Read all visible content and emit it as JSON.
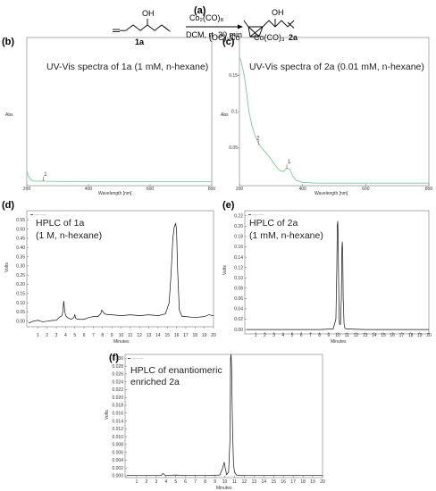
{
  "scheme": {
    "label": "(a)",
    "reagent": "Co₂(CO)₈",
    "conditions": "DCM, rt ,30 min",
    "substituent_oh": "OH",
    "start_compound": "1a",
    "product_compound": "2a",
    "cobalt_left": "(OC)₃Co",
    "cobalt_right": "Co(CO)₃"
  },
  "colors": {
    "uv_line": "#7ec8a2",
    "uv_line_dark": "#2e7d4f",
    "hplc_line": "#111111",
    "frame": "#555555"
  },
  "chart_data": [
    {
      "id": "b",
      "panel_label": "(b)",
      "type": "line",
      "title_text": "UV-Vis spectra of 1a (1 mM, n-hexane)",
      "xlabel": "Wavelength [nm]",
      "ylabel": "Abs",
      "xlim": [
        200,
        800
      ],
      "ylim": [
        0,
        0.16
      ],
      "xticks": [
        200,
        400,
        600,
        800
      ],
      "x_tick_labels": [
        "200",
        "400",
        "600",
        "800"
      ],
      "yticks": [],
      "y_tick_labels": [],
      "peak_marks": [
        {
          "label": "1",
          "x": 253,
          "y": 0.004
        }
      ],
      "series": [
        {
          "x": [
            200,
            204,
            208,
            212,
            216,
            220,
            225,
            230,
            240,
            250,
            260,
            280,
            300,
            350,
            400,
            500,
            600,
            700,
            800
          ],
          "y": [
            0.014,
            0.01,
            0.007,
            0.005,
            0.004,
            0.0035,
            0.003,
            0.003,
            0.003,
            0.0032,
            0.003,
            0.0028,
            0.0027,
            0.0026,
            0.0025,
            0.0025,
            0.0025,
            0.0025,
            0.0025
          ]
        }
      ]
    },
    {
      "id": "c",
      "panel_label": "(c)",
      "type": "line",
      "title_text": "UV-Vis spectra of 2a (0.01 mM, n-hexane)",
      "xlabel": "Wavelength [nm]",
      "ylabel": "Abs",
      "xlim": [
        200,
        800
      ],
      "ylim": [
        0,
        0.2
      ],
      "xticks": [
        200,
        400,
        600,
        800
      ],
      "x_tick_labels": [
        "200",
        "400",
        "600",
        "800"
      ],
      "yticks": [
        0.05,
        0.1,
        0.15
      ],
      "y_tick_labels": [
        "0.05",
        "0.1",
        "0.15"
      ],
      "peak_marks": [
        {
          "label": "1",
          "x": 350,
          "y": 0.022
        },
        {
          "label": "2",
          "x": 260,
          "y": 0.055
        }
      ],
      "series": [
        {
          "x": [
            200,
            205,
            210,
            215,
            220,
            225,
            230,
            240,
            250,
            260,
            270,
            280,
            290,
            300,
            310,
            320,
            330,
            340,
            350,
            360,
            370,
            380,
            400,
            450,
            500,
            600,
            700,
            800
          ],
          "y": [
            0.175,
            0.17,
            0.16,
            0.15,
            0.135,
            0.118,
            0.1,
            0.08,
            0.066,
            0.057,
            0.05,
            0.045,
            0.04,
            0.034,
            0.028,
            0.022,
            0.018,
            0.017,
            0.022,
            0.02,
            0.01,
            0.005,
            0.002,
            0.001,
            0.001,
            0.001,
            0.001,
            0.001
          ]
        }
      ]
    },
    {
      "id": "d",
      "panel_label": "(d)",
      "type": "line",
      "title_text": "HPLC of 1a",
      "subtitle_text": "(1 M, n-hexane)",
      "xlabel": "Minutes",
      "ylabel": "Volts",
      "xlim": [
        0,
        20
      ],
      "ylim": [
        -0.03,
        0.6
      ],
      "xticks": [
        1,
        2,
        3,
        4,
        5,
        6,
        7,
        8,
        9,
        10,
        11,
        12,
        13,
        14,
        15,
        16,
        17,
        18,
        19,
        20
      ],
      "yticks": [
        0.0,
        0.05,
        0.1,
        0.15,
        0.2,
        0.25,
        0.3,
        0.35,
        0.4,
        0.45,
        0.5,
        0.55
      ],
      "y_tick_labels": [
        "0.00",
        "0.05",
        "0.10",
        "0.15",
        "0.20",
        "0.25",
        "0.30",
        "0.35",
        "0.40",
        "0.45",
        "0.50",
        "0.55"
      ],
      "series": [
        {
          "x": [
            0,
            0.5,
            1,
            1.5,
            2,
            2.5,
            3,
            3.3,
            3.6,
            3.7,
            3.8,
            3.9,
            4.0,
            4.2,
            4.6,
            4.9,
            5.0,
            5.1,
            5.4,
            6,
            6.5,
            7,
            7.5,
            7.8,
            7.9,
            8.0,
            8.2,
            8.6,
            9,
            10,
            11,
            12,
            13,
            14,
            14.8,
            15.2,
            15.4,
            15.6,
            15.75,
            15.9,
            16.0,
            16.1,
            16.3,
            16.6,
            17,
            18,
            19,
            19.5,
            20
          ],
          "y": [
            -0.01,
            0.0,
            0.005,
            -0.003,
            0.0,
            0.004,
            0.005,
            0.02,
            0.03,
            0.05,
            0.11,
            0.06,
            0.03,
            0.02,
            0.01,
            0.02,
            0.035,
            0.015,
            0.01,
            0.01,
            0.02,
            0.025,
            0.025,
            0.04,
            0.06,
            0.055,
            0.04,
            0.035,
            0.035,
            0.03,
            0.035,
            0.03,
            0.035,
            0.03,
            0.04,
            0.1,
            0.25,
            0.45,
            0.51,
            0.53,
            0.5,
            0.3,
            0.06,
            0.025,
            0.025,
            0.02,
            0.025,
            0.035,
            0.03
          ]
        }
      ]
    },
    {
      "id": "e",
      "panel_label": "(e)",
      "type": "line",
      "title_text": "HPLC of 2a",
      "subtitle_text": "(1 mM, n-hexane)",
      "xlabel": "Minutes",
      "ylabel": "Volts",
      "xlim": [
        0,
        20
      ],
      "ylim": [
        -0.005,
        0.23
      ],
      "xticks": [
        1,
        2,
        3,
        4,
        5,
        6,
        7,
        8,
        9,
        10,
        11,
        12,
        13,
        14,
        15,
        16,
        17,
        18,
        19,
        20
      ],
      "yticks": [
        0.0,
        0.02,
        0.04,
        0.06,
        0.08,
        0.1,
        0.12,
        0.14,
        0.16,
        0.18,
        0.2,
        0.22
      ],
      "y_tick_labels": [
        "0.00",
        "0.02",
        "0.04",
        "0.06",
        "0.08",
        "0.10",
        "0.12",
        "0.14",
        "0.16",
        "0.18",
        "0.20",
        "0.22"
      ],
      "series": [
        {
          "x": [
            0,
            2,
            4,
            6,
            8,
            9.5,
            9.8,
            9.9,
            9.95,
            10.0,
            10.05,
            10.1,
            10.15,
            10.2,
            10.3,
            10.4,
            10.45,
            10.5,
            10.55,
            10.6,
            10.7,
            10.8,
            11,
            13,
            15,
            17,
            19,
            20
          ],
          "y": [
            0,
            0,
            0,
            0,
            0,
            0.001,
            0.02,
            0.12,
            0.2,
            0.21,
            0.18,
            0.09,
            0.03,
            0.01,
            0.01,
            0.06,
            0.15,
            0.17,
            0.15,
            0.06,
            0.01,
            0.002,
            0.001,
            0,
            0,
            0,
            0,
            0
          ]
        }
      ]
    },
    {
      "id": "f",
      "panel_label": "(f)",
      "type": "line",
      "title_text": "HPLC of enantiomeric",
      "subtitle_text": "enriched 2a",
      "xlabel": "Minutes",
      "ylabel": "Volts",
      "xlim": [
        0,
        20
      ],
      "ylim": [
        0,
        0.031
      ],
      "xticks": [
        1,
        2,
        3,
        4,
        5,
        6,
        7,
        8,
        9,
        10,
        11,
        12,
        13,
        14,
        15,
        16,
        17,
        18,
        19,
        20
      ],
      "yticks": [
        0.0,
        0.002,
        0.004,
        0.006,
        0.008,
        0.01,
        0.012,
        0.014,
        0.016,
        0.018,
        0.02,
        0.022,
        0.024,
        0.026,
        0.028,
        0.03
      ],
      "y_tick_labels": [
        "0.000",
        "0.002",
        "0.004",
        "0.006",
        "0.008",
        "0.010",
        "0.012",
        "0.014",
        "0.016",
        "0.018",
        "0.020",
        "0.022",
        "0.024",
        "0.026",
        "0.028",
        "0.030"
      ],
      "series": [
        {
          "x": [
            0,
            2,
            3.5,
            3.7,
            3.9,
            5,
            6,
            8,
            9.5,
            9.8,
            9.95,
            10.05,
            10.2,
            10.4,
            10.55,
            10.6,
            10.65,
            10.7,
            10.8,
            10.9,
            11.0,
            11.2,
            12,
            14,
            16,
            18,
            20
          ],
          "y": [
            0.0001,
            0.0001,
            0.0001,
            0.0006,
            0.0001,
            0.0002,
            0.0001,
            0.0001,
            0.0002,
            0.002,
            0.0035,
            0.002,
            0.0003,
            0.001,
            0.01,
            0.03,
            0.031,
            0.028,
            0.012,
            0.003,
            0.001,
            0.0002,
            0.0001,
            0.0001,
            0.0001,
            0.0001,
            0.0001
          ]
        }
      ]
    }
  ]
}
